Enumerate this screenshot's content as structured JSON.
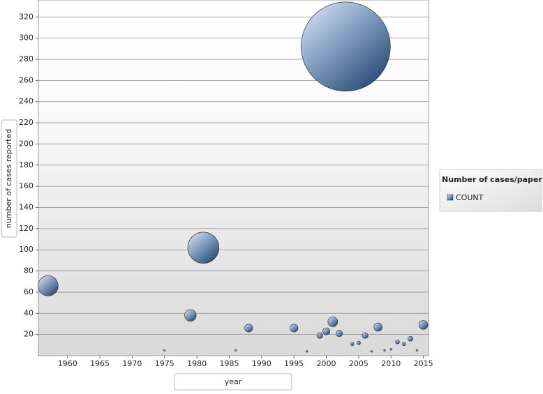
{
  "chart_data": {
    "type": "bubble",
    "x_label": "year",
    "y_label": "number of cases reported",
    "legend_title": "Number of cases/paper",
    "legend_position": "right",
    "series": [
      {
        "name": "COUNT",
        "color": "#4a6a91",
        "x": [
          1957,
          1975,
          1979,
          1981,
          1986,
          1988,
          1995,
          1997,
          1999,
          2000,
          2001,
          2002,
          2003,
          2004,
          2005,
          2006,
          2007,
          2008,
          2009,
          2010,
          2011,
          2012,
          2013,
          2014,
          2015
        ],
        "values": [
          66,
          5,
          38,
          102,
          5,
          26,
          26,
          4,
          19,
          23,
          32,
          21,
          292,
          11,
          12,
          19,
          4,
          27,
          5,
          6,
          13,
          11,
          16,
          5,
          29
        ],
        "sizes": [
          66,
          5,
          38,
          102,
          5,
          26,
          26,
          4,
          19,
          23,
          32,
          21,
          292,
          11,
          12,
          19,
          4,
          27,
          5,
          6,
          13,
          11,
          16,
          5,
          29
        ]
      }
    ],
    "xlim": [
      1955.5,
      2015.8
    ],
    "xticks": [
      1960,
      1965,
      1970,
      1975,
      1980,
      1985,
      1990,
      1995,
      2000,
      2005,
      2010,
      2015
    ],
    "ylim": [
      0,
      336
    ],
    "yticks": [
      20,
      40,
      60,
      80,
      100,
      120,
      140,
      160,
      180,
      200,
      220,
      240,
      260,
      280,
      300,
      320
    ],
    "grid": true
  }
}
